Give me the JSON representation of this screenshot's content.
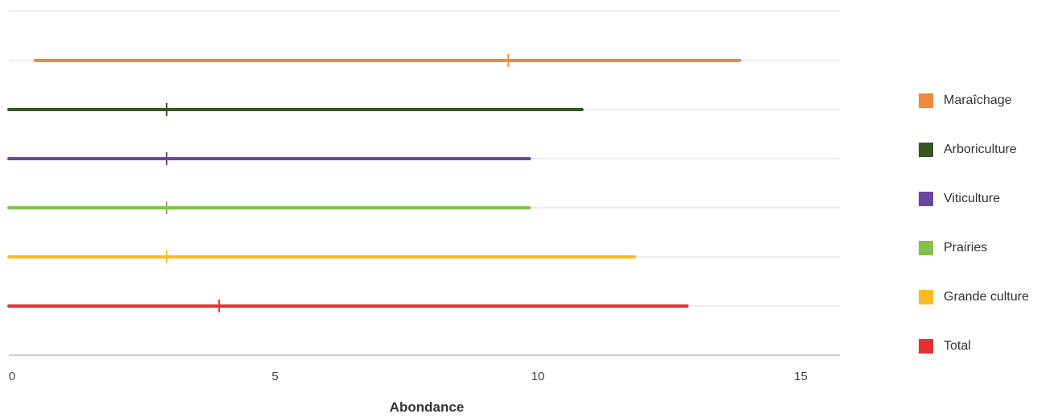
{
  "chart_data": {
    "type": "range",
    "xlabel": "Abondance",
    "xlim": [
      0,
      16
    ],
    "xticks": [
      0,
      5,
      10,
      15
    ],
    "grid": true,
    "legend_position": "right",
    "series": [
      {
        "name": "Maraîchage",
        "color": "#F0883A",
        "min": 0.5,
        "max": 13.9,
        "median": 9.5
      },
      {
        "name": "Arboriculture",
        "color": "#375623",
        "min": 0,
        "max": 10.9,
        "median": 3
      },
      {
        "name": "Viticulture",
        "color": "#6A46A0",
        "min": 0,
        "max": 9.9,
        "median": 3
      },
      {
        "name": "Prairies",
        "color": "#84C04A",
        "min": 0,
        "max": 9.9,
        "median": 3
      },
      {
        "name": "Grande culture",
        "color": "#FBBA25",
        "min": 0,
        "max": 11.9,
        "median": 3
      },
      {
        "name": "Total",
        "color": "#E8302E",
        "min": 0,
        "max": 12.9,
        "median": 4
      }
    ]
  }
}
